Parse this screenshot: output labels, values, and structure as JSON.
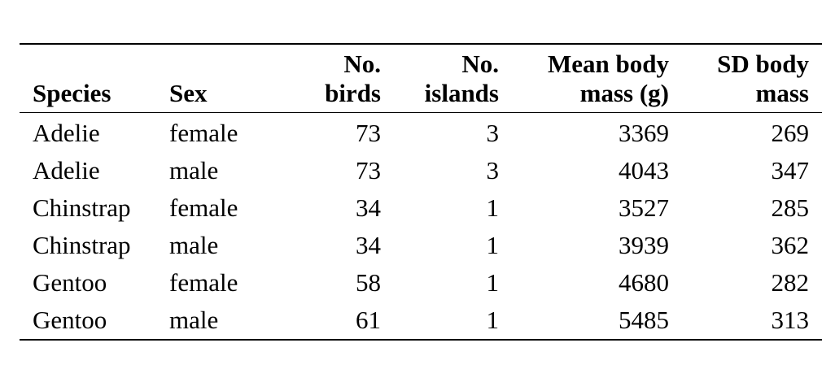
{
  "chart_data": {
    "type": "table",
    "columns": [
      {
        "key": "species",
        "line1": "",
        "line2": "Species",
        "align": "left"
      },
      {
        "key": "sex",
        "line1": "",
        "line2": "Sex",
        "align": "left"
      },
      {
        "key": "n_birds",
        "line1": "No.",
        "line2": "birds",
        "align": "right"
      },
      {
        "key": "n_islands",
        "line1": "No.",
        "line2": "islands",
        "align": "right"
      },
      {
        "key": "mean_mass",
        "line1": "Mean body",
        "line2": "mass (g)",
        "align": "right"
      },
      {
        "key": "sd_mass",
        "line1": "SD body",
        "line2": "mass",
        "align": "right"
      }
    ],
    "rows": [
      [
        "Adelie",
        "female",
        "73",
        "3",
        "3369",
        "269"
      ],
      [
        "Adelie",
        "male",
        "73",
        "3",
        "4043",
        "347"
      ],
      [
        "Chinstrap",
        "female",
        "34",
        "1",
        "3527",
        "285"
      ],
      [
        "Chinstrap",
        "male",
        "34",
        "1",
        "3939",
        "362"
      ],
      [
        "Gentoo",
        "female",
        "58",
        "1",
        "4680",
        "282"
      ],
      [
        "Gentoo",
        "male",
        "61",
        "1",
        "5485",
        "313"
      ]
    ]
  }
}
